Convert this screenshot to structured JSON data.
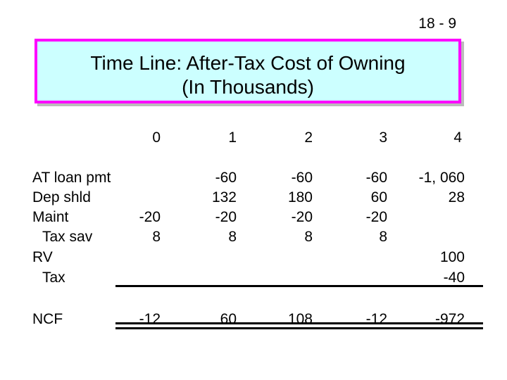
{
  "slide_number": "18 - 9",
  "title": {
    "line1": "Time Line:  After-Tax Cost of Owning",
    "line2": "(In Thousands)"
  },
  "periods": [
    "0",
    "1",
    "2",
    "3",
    "4"
  ],
  "row_labels": [
    "AT loan pmt",
    "Dep shld",
    "Maint",
    "Tax sav",
    "RV",
    "Tax"
  ],
  "ncf_label": "NCF",
  "columns": {
    "p0": {
      "maint": "-20",
      "tax_sav": "8",
      "ncf": "-12"
    },
    "p1": {
      "at_loan_pmt": "-60",
      "dep_shld": "132",
      "maint": "-20",
      "tax_sav": "8",
      "ncf": "60"
    },
    "p2": {
      "at_loan_pmt": "-60",
      "dep_shld": "180",
      "maint": "-20",
      "tax_sav": "8",
      "ncf": "108"
    },
    "p3": {
      "at_loan_pmt": "-60",
      "dep_shld": "60",
      "maint": "-20",
      "tax_sav": "8",
      "ncf": "-12"
    },
    "p4": {
      "at_loan_pmt": "-1, 060",
      "dep_shld": "28",
      "rv": "100",
      "tax": "-40",
      "ncf": "-972"
    }
  },
  "colors": {
    "title_bg": "#ccffff",
    "title_border": "#ff00ff"
  }
}
